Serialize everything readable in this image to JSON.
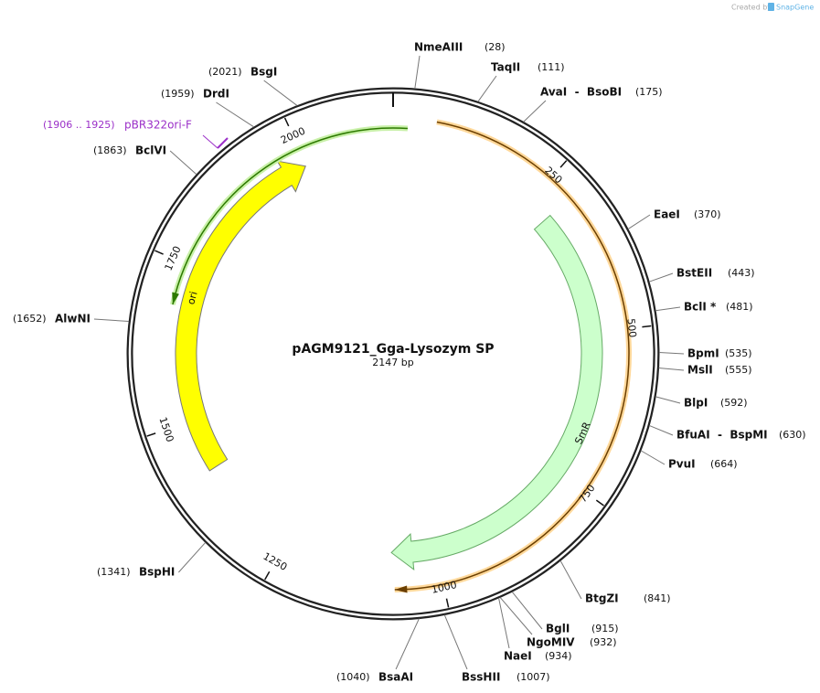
{
  "header": {
    "credit": "Created by",
    "brand": "SnapGene"
  },
  "plasmid": {
    "name": "pAGM9121_Gga-Lysozym SP",
    "length": "2147 bp"
  },
  "ruler": [
    "250",
    "500",
    "750",
    "1000",
    "1250",
    "1500",
    "1750",
    "2000"
  ],
  "features": [
    {
      "label": "ori"
    },
    {
      "label": "SmR"
    }
  ],
  "primer": {
    "range": "(1906 .. 1925)",
    "name": "pBR322ori-F"
  },
  "enzymes": [
    {
      "name": "NmeAIII",
      "position": "(28)"
    },
    {
      "name": "TaqII",
      "position": "(111)"
    },
    {
      "name": "AvaI  -  BsoBI",
      "position": "(175)"
    },
    {
      "name": "EaeI",
      "position": "(370)"
    },
    {
      "name": "BstEII",
      "position": "(443)"
    },
    {
      "name": "BclI *",
      "position": "(481)"
    },
    {
      "name": "BpmI",
      "position": "(535)"
    },
    {
      "name": "MslI",
      "position": "(555)"
    },
    {
      "name": "BlpI",
      "position": "(592)"
    },
    {
      "name": "BfuAI  -  BspMI",
      "position": "(630)"
    },
    {
      "name": "PvuI",
      "position": "(664)"
    },
    {
      "name": "BtgZI",
      "position": "(841)"
    },
    {
      "name": "BglI",
      "position": "(915)"
    },
    {
      "name": "NgoMIV",
      "position": "(932)"
    },
    {
      "name": "NaeI",
      "position": "(934)"
    },
    {
      "name": "BssHII",
      "position": "(1007)"
    },
    {
      "name": "BsaAI",
      "position": "(1040)"
    },
    {
      "name": "BspHI",
      "position": "(1341)"
    },
    {
      "name": "AlwNI",
      "position": "(1652)"
    },
    {
      "name": "BclVI",
      "position": "(1863)"
    },
    {
      "name": "DrdI",
      "position": "(1959)"
    },
    {
      "name": "BsgI",
      "position": "(2021)"
    }
  ]
}
